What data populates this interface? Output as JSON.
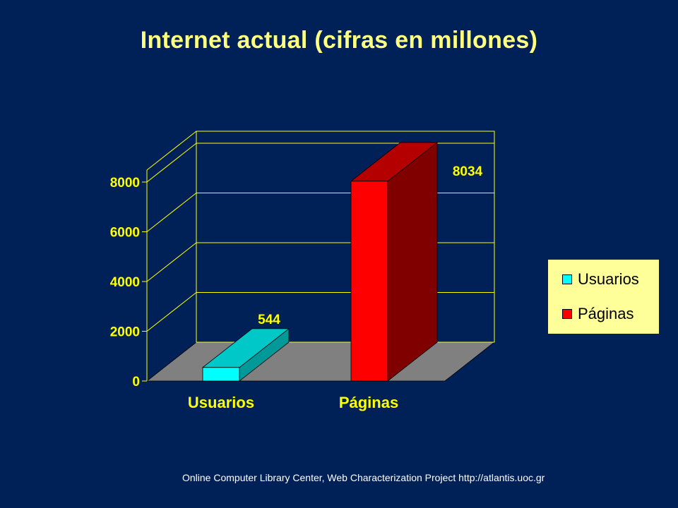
{
  "slide": {
    "title": "Internet actual (cifras en millones)",
    "source_note": "Online Computer Library Center, Web Characterization Project http://atlantis.uoc.gr"
  },
  "colors": {
    "background": "#002157",
    "title": "#FFFF80",
    "axis_text": "#FFFF00",
    "gridline": "#FFFF00",
    "floor": "#808080",
    "legend_bg": "#FFFF99"
  },
  "chart_data": {
    "type": "bar",
    "title": "Internet actual (cifras en millones)",
    "xlabel": "",
    "ylabel": "",
    "categories": [
      "Usuarios",
      "Páginas"
    ],
    "values": [
      544,
      8034
    ],
    "data_labels": [
      "544",
      "8034"
    ],
    "ylim": [
      0,
      8000
    ],
    "yticks": [
      "0",
      "2000",
      "4000",
      "6000",
      "8000"
    ],
    "grid": true,
    "legend_placement": "right",
    "legend": [
      {
        "label": "Usuarios",
        "color": "#00FFFF"
      },
      {
        "label": "Páginas",
        "color": "#FF0000"
      }
    ],
    "bar_colors": [
      {
        "front": "#00FFFF",
        "top": "#00C8C8",
        "side": "#009999"
      },
      {
        "front": "#FF0000",
        "top": "#B40000",
        "side": "#800000"
      }
    ]
  }
}
